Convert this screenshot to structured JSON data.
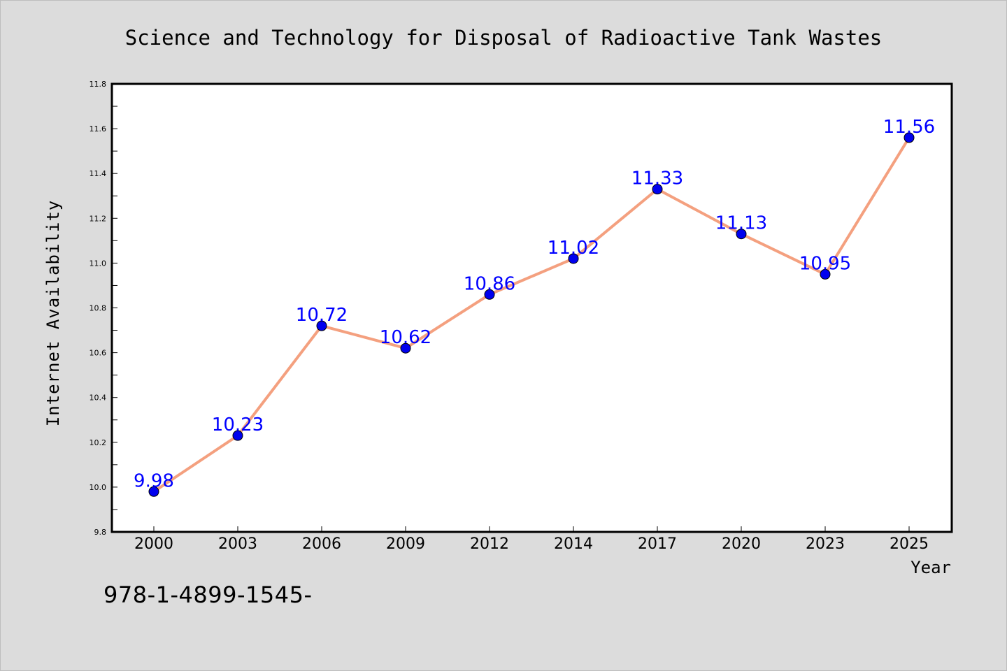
{
  "chart_data": {
    "type": "line",
    "title": "Science and Technology for Disposal of Radioactive Tank Wastes",
    "xlabel": "Year",
    "ylabel": "Internet Availability",
    "categories": [
      "2000",
      "2003",
      "2006",
      "2009",
      "2012",
      "2014",
      "2017",
      "2020",
      "2023",
      "2025"
    ],
    "series": [
      {
        "values": [
          9.98,
          10.23,
          10.72,
          10.62,
          10.86,
          11.02,
          11.33,
          11.13,
          10.95,
          11.56
        ],
        "data_labels": [
          "9.98",
          "10.23",
          "10.72",
          "10.62",
          "10.86",
          "11.02",
          "11.33",
          "11.13",
          "10.95",
          "11.56"
        ],
        "line_color": "#f4a07f",
        "marker_color": "#0000ee"
      }
    ],
    "ylim": [
      9.8,
      11.8
    ],
    "yticks": [
      9.8,
      10.0,
      10.2,
      10.4,
      10.6,
      10.8,
      11.0,
      11.2,
      11.4,
      11.6,
      11.8
    ],
    "ytick_labels": [
      "9.8",
      "10.0",
      "10.2",
      "10.4",
      "10.6",
      "10.8",
      "11.0",
      "11.2",
      "11.4",
      "11.6",
      "11.8"
    ],
    "grid": false,
    "legend": "none",
    "label_color": "#0000ff",
    "background_color": "#dcdcdc",
    "plot_background": "#ffffff"
  },
  "caption": "978-1-4899-1545-"
}
